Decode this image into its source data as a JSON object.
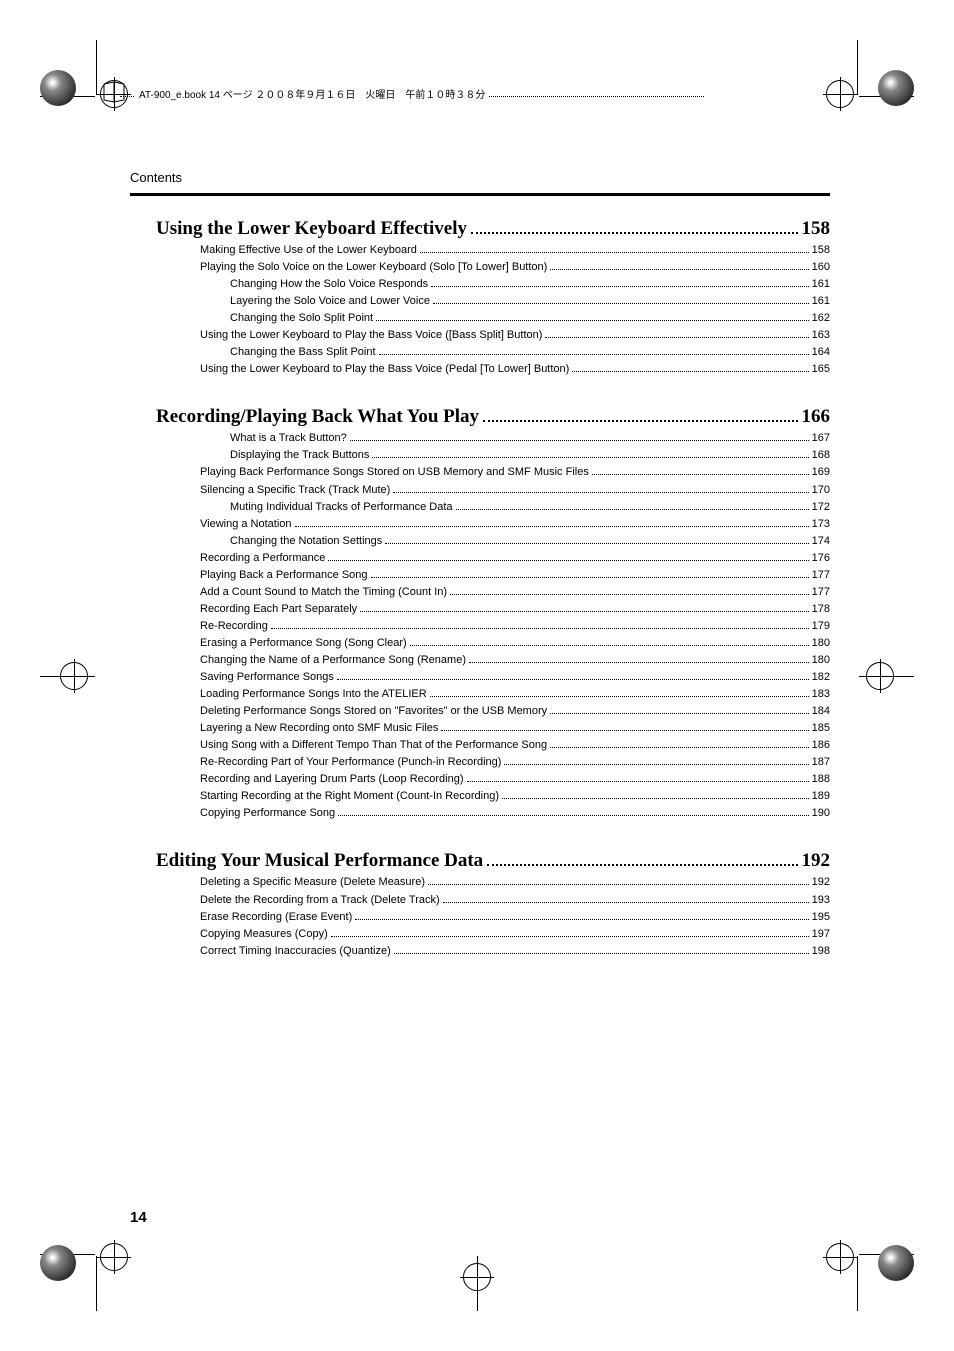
{
  "header_text": "AT-900_e.book 14 ページ ２００８年９月１６日　火曜日　午前１０時３８分",
  "contents_label": "Contents",
  "page_number": "14",
  "colors": {
    "text": "#000000",
    "background": "#ffffff",
    "dot_leader": "#000000",
    "rule": "#000000"
  },
  "typography": {
    "heading_fontsize_pt": 14,
    "body_fontsize_pt": 8,
    "heading_weight": "bold",
    "body_family": "Arial",
    "heading_family": "Georgia"
  },
  "sections": [
    {
      "title": "Using the Lower Keyboard Effectively",
      "page": "158",
      "items": [
        {
          "level": 0,
          "title": "Making Effective Use of the Lower Keyboard",
          "page": "158"
        },
        {
          "level": 0,
          "title": "Playing the Solo Voice on the Lower Keyboard (Solo [To Lower] Button)",
          "page": "160"
        },
        {
          "level": 1,
          "title": "Changing How the Solo Voice Responds",
          "page": "161"
        },
        {
          "level": 1,
          "title": "Layering the Solo Voice and Lower Voice",
          "page": "161"
        },
        {
          "level": 1,
          "title": "Changing the Solo Split Point",
          "page": "162"
        },
        {
          "level": 0,
          "title": "Using the Lower Keyboard to Play the Bass Voice ([Bass Split] Button)",
          "page": "163"
        },
        {
          "level": 1,
          "title": "Changing the Bass Split Point",
          "page": "164"
        },
        {
          "level": 0,
          "title": "Using the Lower Keyboard to Play the Bass Voice (Pedal [To Lower] Button)",
          "page": "165"
        }
      ]
    },
    {
      "title": "Recording/Playing Back What You Play",
      "page": "166",
      "items": [
        {
          "level": 1,
          "title": "What is a Track Button?",
          "page": "167"
        },
        {
          "level": 1,
          "title": "Displaying the Track Buttons",
          "page": "168"
        },
        {
          "level": 0,
          "title": "Playing Back Performance Songs Stored on USB Memory and SMF Music Files",
          "page": "169"
        },
        {
          "level": 0,
          "title": "Silencing a Specific Track (Track Mute)",
          "page": "170"
        },
        {
          "level": 1,
          "title": "Muting Individual Tracks of Performance Data",
          "page": "172"
        },
        {
          "level": 0,
          "title": "Viewing a Notation",
          "page": "173"
        },
        {
          "level": 1,
          "title": "Changing the Notation Settings",
          "page": "174"
        },
        {
          "level": 0,
          "title": "Recording a Performance",
          "page": "176"
        },
        {
          "level": 0,
          "title": "Playing Back a Performance Song",
          "page": "177"
        },
        {
          "level": 0,
          "title": "Add a Count Sound to Match the Timing (Count In)",
          "page": "177"
        },
        {
          "level": 0,
          "title": "Recording Each Part Separately",
          "page": "178"
        },
        {
          "level": 0,
          "title": "Re-Recording",
          "page": "179"
        },
        {
          "level": 0,
          "title": "Erasing a Performance Song (Song Clear)",
          "page": "180"
        },
        {
          "level": 0,
          "title": "Changing the Name of a Performance Song (Rename)",
          "page": "180"
        },
        {
          "level": 0,
          "title": "Saving Performance Songs",
          "page": "182"
        },
        {
          "level": 0,
          "title": "Loading Performance Songs Into the ATELIER",
          "page": "183"
        },
        {
          "level": 0,
          "title": "Deleting Performance Songs Stored on \"Favorites\" or the USB Memory",
          "page": "184"
        },
        {
          "level": 0,
          "title": "Layering a New Recording onto SMF Music Files",
          "page": "185"
        },
        {
          "level": 0,
          "title": "Using Song with a Different Tempo Than That of the Performance Song",
          "page": "186"
        },
        {
          "level": 0,
          "title": "Re-Recording Part of Your Performance (Punch-in Recording)",
          "page": "187"
        },
        {
          "level": 0,
          "title": "Recording and Layering Drum Parts (Loop Recording)",
          "page": "188"
        },
        {
          "level": 0,
          "title": "Starting Recording at the Right Moment (Count-In Recording)",
          "page": "189"
        },
        {
          "level": 0,
          "title": "Copying Performance Song",
          "page": "190"
        }
      ]
    },
    {
      "title": "Editing Your Musical Performance Data",
      "page": "192",
      "items": [
        {
          "level": 0,
          "title": "Deleting a Specific Measure (Delete Measure)",
          "page": "192"
        },
        {
          "level": 0,
          "title": "Delete the Recording from a Track (Delete Track)",
          "page": "193"
        },
        {
          "level": 0,
          "title": "Erase Recording (Erase Event)",
          "page": "195"
        },
        {
          "level": 0,
          "title": "Copying Measures (Copy)",
          "page": "197"
        },
        {
          "level": 0,
          "title": "Correct Timing Inaccuracies (Quantize)",
          "page": "198"
        }
      ]
    }
  ]
}
